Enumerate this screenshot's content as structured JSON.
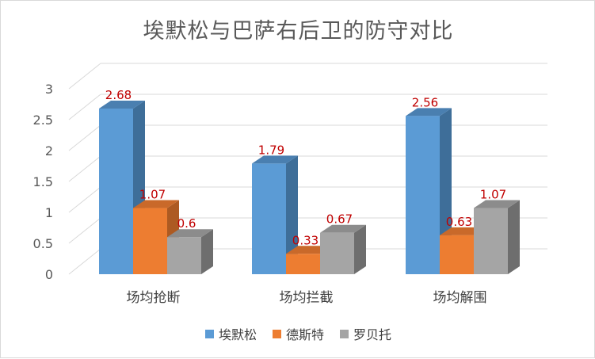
{
  "chart_data": {
    "type": "bar",
    "title": "埃默松与巴萨右后卫的防守对比",
    "categories": [
      "场均抢断",
      "场均拦截",
      "场均解围"
    ],
    "series": [
      {
        "name": "埃默松",
        "values": [
          2.68,
          1.79,
          2.56
        ],
        "color": "#5b9bd5",
        "side": "#3e6e99",
        "top": "#4a7fb0"
      },
      {
        "name": "德斯特",
        "values": [
          1.07,
          0.33,
          0.63
        ],
        "color": "#ed7d31",
        "side": "#ad5a22",
        "top": "#c9692a"
      },
      {
        "name": "罗贝托",
        "values": [
          0.6,
          0.67,
          1.07
        ],
        "color": "#a5a5a5",
        "side": "#6e6e6e",
        "top": "#8c8c8c"
      }
    ],
    "data_labels": [
      [
        "2.68",
        "1.79",
        "2.56"
      ],
      [
        "1.07",
        "0.33",
        "0.63"
      ],
      [
        "0.6",
        "0.67",
        "1.07"
      ]
    ],
    "yticks": [
      "0",
      "0.5",
      "1",
      "1.5",
      "2",
      "2.5",
      "3"
    ],
    "ylim": [
      0,
      3
    ],
    "grid": true,
    "legend_position": "bottom"
  }
}
